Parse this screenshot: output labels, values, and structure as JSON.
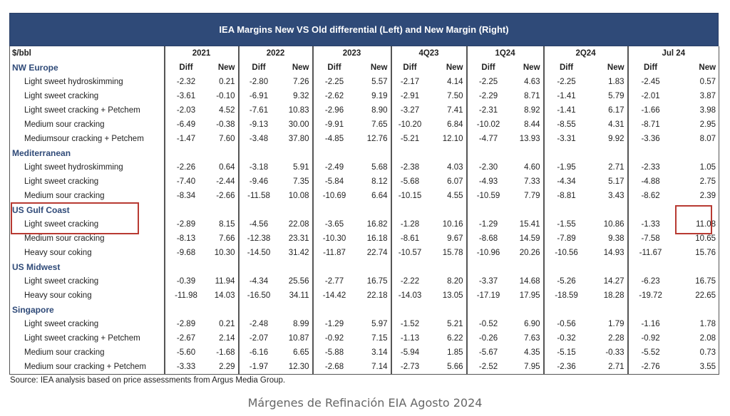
{
  "title": "IEA Margins New VS Old differential (Left) and New Margin (Right)",
  "unit_label": "$/bbl",
  "periods": [
    "2021",
    "2022",
    "2023",
    "4Q23",
    "1Q24",
    "2Q24",
    "Jul 24"
  ],
  "sub_headers": {
    "diff": "Diff",
    "new": "New"
  },
  "regions": [
    {
      "name": "NW Europe",
      "rows": [
        {
          "label": "Light sweet hydroskimming",
          "values": [
            "-2.32",
            "0.21",
            "-2.80",
            "7.26",
            "-2.25",
            "5.57",
            "-2.17",
            "4.14",
            "-2.25",
            "4.63",
            "-2.25",
            "1.83",
            "-2.45",
            "0.57"
          ]
        },
        {
          "label": "Light sweet cracking",
          "values": [
            "-3.61",
            "-0.10",
            "-6.91",
            "9.32",
            "-2.62",
            "9.19",
            "-2.91",
            "7.50",
            "-2.29",
            "8.71",
            "-1.41",
            "5.79",
            "-2.01",
            "3.87"
          ]
        },
        {
          "label": "Light sweet cracking + Petchem",
          "values": [
            "-2.03",
            "4.52",
            "-7.61",
            "10.83",
            "-2.96",
            "8.90",
            "-3.27",
            "7.41",
            "-2.31",
            "8.92",
            "-1.41",
            "6.17",
            "-1.66",
            "3.98"
          ]
        },
        {
          "label": "Medium sour cracking",
          "values": [
            "-6.49",
            "-0.38",
            "-9.13",
            "30.00",
            "-9.91",
            "7.65",
            "-10.20",
            "6.84",
            "-10.02",
            "8.44",
            "-8.55",
            "4.31",
            "-8.71",
            "2.95"
          ]
        },
        {
          "label": "Mediumsour cracking + Petchem",
          "values": [
            "-1.47",
            "7.60",
            "-3.48",
            "37.80",
            "-4.85",
            "12.76",
            "-5.21",
            "12.10",
            "-4.77",
            "13.93",
            "-3.31",
            "9.92",
            "-3.36",
            "8.07"
          ]
        }
      ]
    },
    {
      "name": "Mediterranean",
      "rows": [
        {
          "label": "Light sweet hydroskimming",
          "values": [
            "-2.26",
            "0.64",
            "-3.18",
            "5.91",
            "-2.49",
            "5.68",
            "-2.38",
            "4.03",
            "-2.30",
            "4.60",
            "-1.95",
            "2.71",
            "-2.33",
            "1.05"
          ]
        },
        {
          "label": "Light sweet cracking",
          "values": [
            "-7.40",
            "-2.44",
            "-9.46",
            "7.35",
            "-5.84",
            "8.12",
            "-5.68",
            "6.07",
            "-4.93",
            "7.33",
            "-4.34",
            "5.17",
            "-4.88",
            "2.75"
          ]
        },
        {
          "label": "Medium sour cracking",
          "values": [
            "-8.34",
            "-2.66",
            "-11.58",
            "10.08",
            "-10.69",
            "6.64",
            "-10.15",
            "4.55",
            "-10.59",
            "7.79",
            "-8.81",
            "3.43",
            "-8.62",
            "2.39"
          ]
        }
      ]
    },
    {
      "name": "US Gulf Coast",
      "rows": [
        {
          "label": "Light sweet cracking",
          "values": [
            "-2.89",
            "8.15",
            "-4.56",
            "22.08",
            "-3.65",
            "16.82",
            "-1.28",
            "10.16",
            "-1.29",
            "15.41",
            "-1.55",
            "10.86",
            "-1.33",
            "11.08"
          ]
        },
        {
          "label": "Medium sour cracking",
          "values": [
            "-8.13",
            "7.66",
            "-12.38",
            "23.31",
            "-10.30",
            "16.18",
            "-8.61",
            "9.67",
            "-8.68",
            "14.59",
            "-7.89",
            "9.38",
            "-7.58",
            "10.65"
          ]
        },
        {
          "label": "Heavy sour coking",
          "values": [
            "-9.68",
            "10.30",
            "-14.50",
            "31.42",
            "-11.87",
            "22.74",
            "-10.57",
            "15.78",
            "-10.96",
            "20.26",
            "-10.56",
            "14.93",
            "-11.67",
            "15.76"
          ]
        }
      ]
    },
    {
      "name": "US Midwest",
      "rows": [
        {
          "label": "Light sweet cracking",
          "values": [
            "-0.39",
            "11.94",
            "-4.34",
            "25.56",
            "-2.77",
            "16.75",
            "-2.22",
            "8.20",
            "-3.37",
            "14.68",
            "-5.26",
            "14.27",
            "-6.23",
            "16.75"
          ]
        },
        {
          "label": "Heavy sour coking",
          "values": [
            "-11.98",
            "14.03",
            "-16.50",
            "34.11",
            "-14.42",
            "22.18",
            "-14.03",
            "13.05",
            "-17.19",
            "17.95",
            "-18.59",
            "18.28",
            "-19.72",
            "22.65"
          ]
        }
      ]
    },
    {
      "name": "Singapore",
      "rows": [
        {
          "label": "Light sweet cracking",
          "values": [
            "-2.89",
            "0.21",
            "-2.48",
            "8.99",
            "-1.29",
            "5.97",
            "-1.52",
            "5.21",
            "-0.52",
            "6.90",
            "-0.56",
            "1.79",
            "-1.16",
            "1.78"
          ]
        },
        {
          "label": "Light sweet cracking + Petchem",
          "values": [
            "-2.67",
            "2.14",
            "-2.07",
            "10.87",
            "-0.92",
            "7.15",
            "-1.13",
            "6.22",
            "-0.26",
            "7.63",
            "-0.32",
            "2.28",
            "-0.92",
            "2.08"
          ]
        },
        {
          "label": "Medium sour cracking",
          "values": [
            "-5.60",
            "-1.68",
            "-6.16",
            "6.65",
            "-5.88",
            "3.14",
            "-5.94",
            "1.85",
            "-5.67",
            "4.35",
            "-5.15",
            "-0.33",
            "-5.52",
            "0.73"
          ]
        },
        {
          "label": "Medium sour cracking + Petchem",
          "values": [
            "-3.33",
            "2.29",
            "-1.97",
            "12.30",
            "-2.68",
            "7.14",
            "-2.73",
            "5.66",
            "-2.52",
            "7.95",
            "-2.36",
            "2.71",
            "-2.76",
            "3.55"
          ]
        }
      ]
    }
  ],
  "source": "Source: IEA analysis based on price assessments from Argus Media Group.",
  "caption": "Márgenes de Refinación EIA Agosto 2024",
  "colors": {
    "header_band": "#2f4a78",
    "region_text": "#2f4a78",
    "highlight": "#b83a32"
  }
}
